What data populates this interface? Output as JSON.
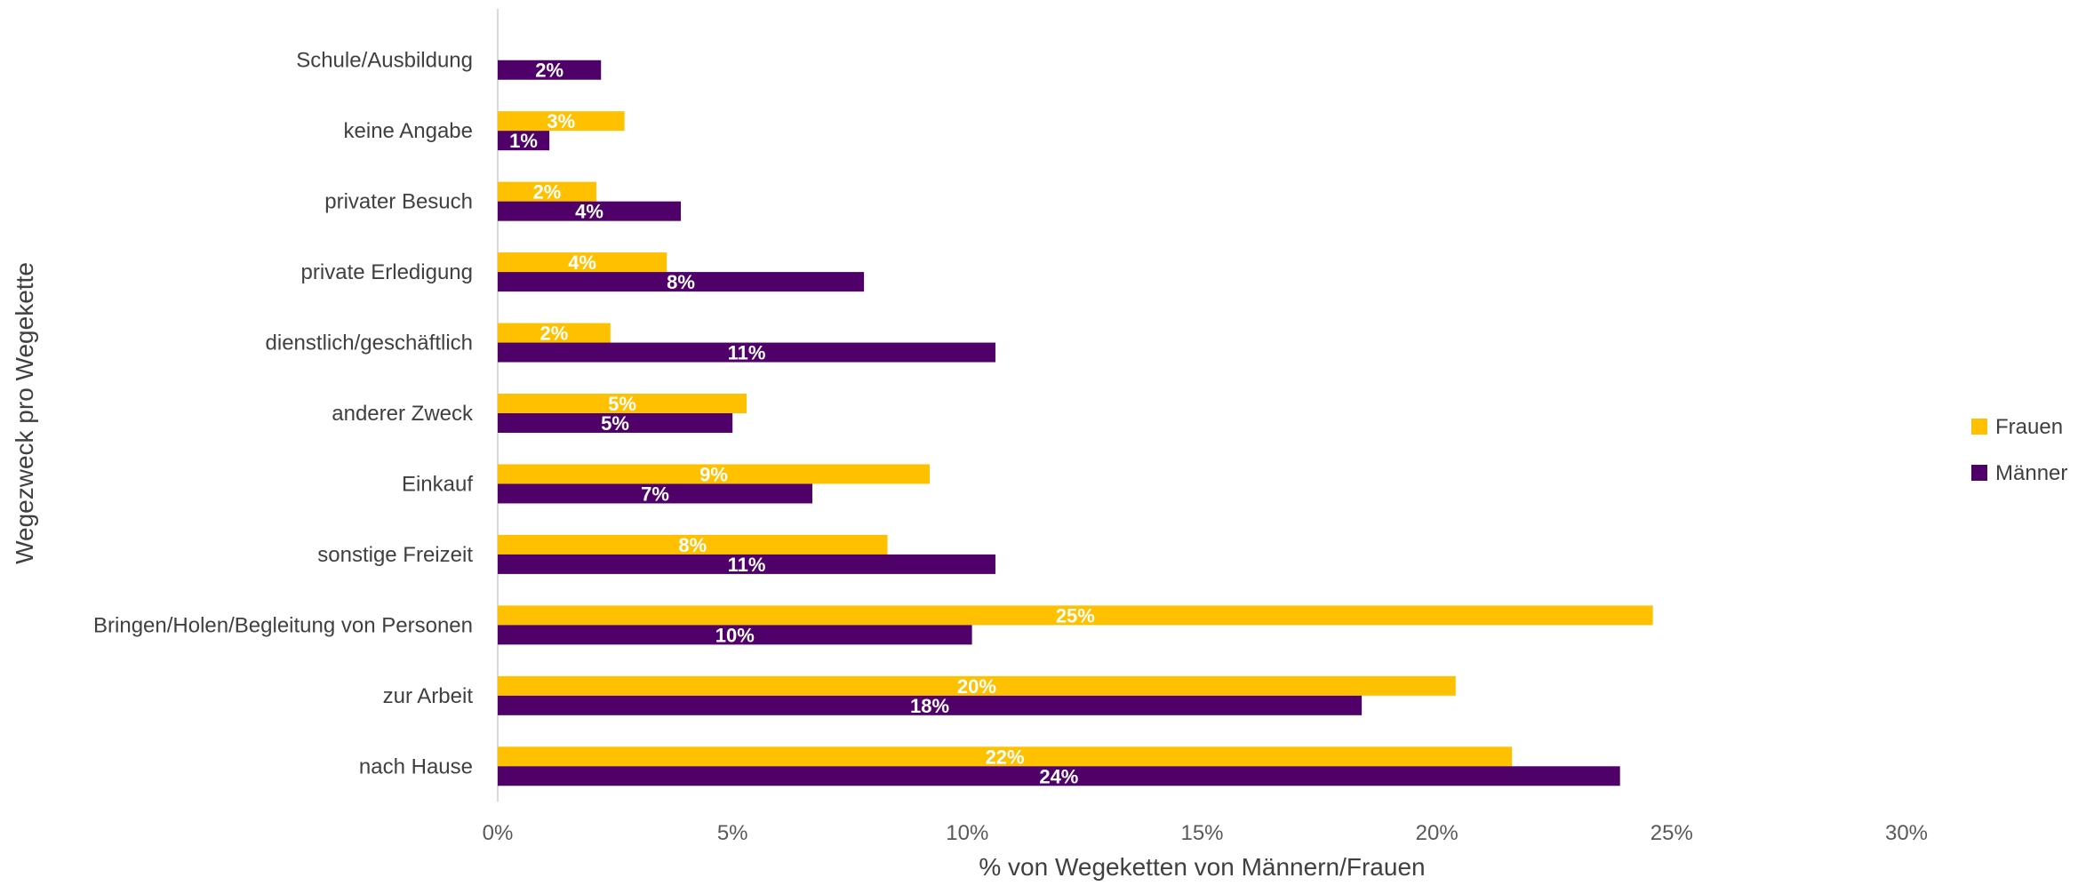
{
  "chart_data": {
    "type": "bar",
    "orientation": "horizontal",
    "categories": [
      "Schule/Ausbildung",
      "keine Angabe",
      "privater Besuch",
      "private Erledigung",
      "dienstlich/geschäftlich",
      "anderer Zweck",
      "Einkauf",
      "sonstige Freizeit",
      "Bringen/Holen/Begleitung von Personen",
      "zur Arbeit",
      "nach Hause"
    ],
    "series": [
      {
        "name": "Frauen",
        "color": "#FFC000",
        "values": [
          0,
          2.7,
          2.1,
          3.6,
          2.4,
          5.3,
          9.2,
          8.3,
          24.6,
          20.4,
          21.6
        ],
        "labels": [
          "",
          "3%",
          "2%",
          "4%",
          "2%",
          "5%",
          "9%",
          "8%",
          "25%",
          "20%",
          "22%"
        ]
      },
      {
        "name": "Männer",
        "color": "#4F0069",
        "values": [
          2.2,
          1.1,
          3.9,
          7.8,
          10.6,
          5.0,
          6.7,
          10.6,
          10.1,
          18.4,
          23.9
        ],
        "labels": [
          "2%",
          "1%",
          "4%",
          "8%",
          "11%",
          "5%",
          "7%",
          "11%",
          "10%",
          "18%",
          "24%"
        ]
      }
    ],
    "xlim": [
      0,
      30
    ],
    "xticks": [
      "0%",
      "5%",
      "10%",
      "15%",
      "20%",
      "25%",
      "30%"
    ],
    "xlabel": "% von Wegeketten von Männern/Frauen",
    "ylabel": "Wegezweck pro Wegekette",
    "title": "",
    "grid": false,
    "legend_position": "right"
  }
}
